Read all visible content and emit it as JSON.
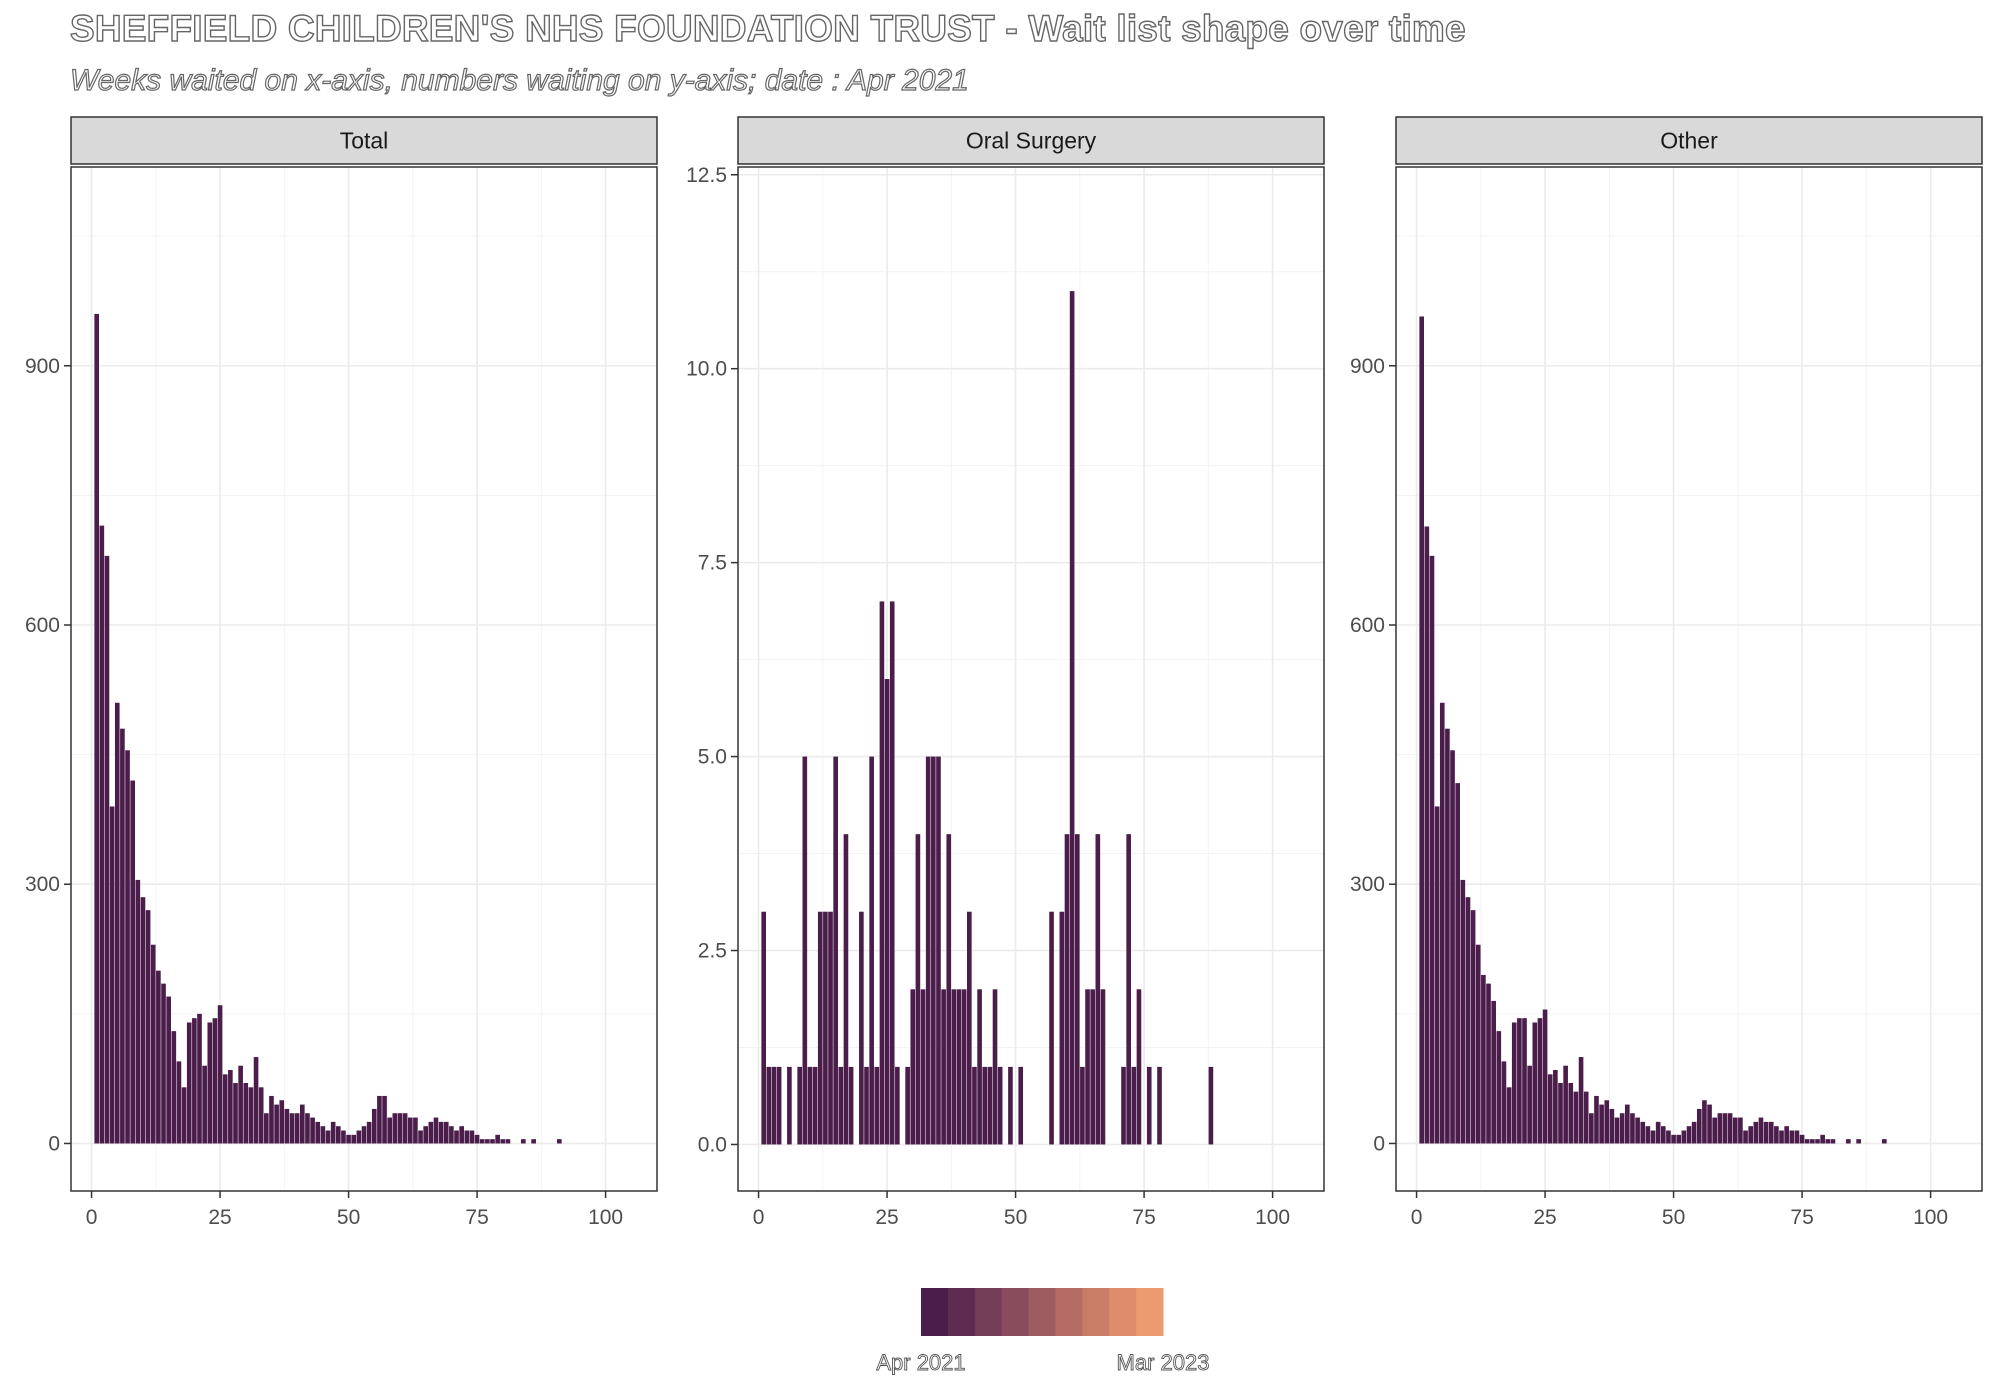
{
  "header": {
    "title": "SHEFFIELD CHILDREN'S NHS FOUNDATION TRUST - Wait list shape over time",
    "subtitle": "Weeks waited on x-axis, numbers waiting on y-axis; date : Apr 2021"
  },
  "colors": {
    "bar": "#4a1d4a",
    "strip_bg": "#d9d9d9",
    "grid": "#ebebeb",
    "panel_border": "#333333"
  },
  "legend": {
    "start_label": "Apr 2021",
    "end_label": "Mar 2023",
    "swatches": [
      "#4a1d4a",
      "#5e2c50",
      "#733c57",
      "#884c5c",
      "#9d5c60",
      "#b46c64",
      "#c97c68",
      "#de8c6c",
      "#ec9a70"
    ]
  },
  "chart_data": [
    {
      "type": "bar",
      "facet": "Total",
      "x_ticks": [
        0,
        25,
        50,
        75,
        100
      ],
      "y_ticks": [
        0,
        300,
        600,
        900
      ],
      "xlim": [
        -4,
        110
      ],
      "ylim": [
        -55,
        1130
      ],
      "x": [
        1,
        2,
        3,
        4,
        5,
        6,
        7,
        8,
        9,
        10,
        11,
        12,
        13,
        14,
        15,
        16,
        17,
        18,
        19,
        20,
        21,
        22,
        23,
        24,
        25,
        26,
        27,
        28,
        29,
        30,
        31,
        32,
        33,
        34,
        35,
        36,
        37,
        38,
        39,
        40,
        41,
        42,
        43,
        44,
        45,
        46,
        47,
        48,
        49,
        50,
        51,
        52,
        53,
        54,
        55,
        56,
        57,
        58,
        59,
        60,
        61,
        62,
        63,
        64,
        65,
        66,
        67,
        68,
        69,
        70,
        71,
        72,
        73,
        74,
        75,
        76,
        77,
        78,
        79,
        80,
        81,
        82,
        83,
        84,
        85,
        86,
        87,
        88,
        89,
        90,
        91,
        92,
        93,
        94,
        95,
        96,
        97,
        98,
        99,
        100
      ],
      "values": [
        960,
        715,
        680,
        390,
        510,
        480,
        455,
        420,
        305,
        285,
        270,
        230,
        200,
        185,
        170,
        130,
        95,
        65,
        140,
        145,
        150,
        90,
        140,
        145,
        160,
        80,
        85,
        70,
        90,
        70,
        65,
        100,
        65,
        35,
        55,
        45,
        50,
        40,
        35,
        35,
        45,
        35,
        30,
        25,
        20,
        15,
        25,
        20,
        15,
        10,
        10,
        15,
        20,
        25,
        40,
        55,
        55,
        30,
        35,
        35,
        35,
        30,
        30,
        15,
        20,
        25,
        30,
        25,
        25,
        20,
        15,
        20,
        15,
        15,
        10,
        5,
        5,
        5,
        10,
        5,
        5,
        0,
        0,
        5,
        0,
        5,
        0,
        0,
        0,
        0,
        5,
        0,
        0,
        0,
        0,
        0,
        0,
        0,
        0,
        0
      ]
    },
    {
      "type": "bar",
      "facet": "Oral Surgery",
      "x_ticks": [
        0,
        25,
        50,
        75,
        100
      ],
      "y_ticks": [
        0.0,
        2.5,
        5.0,
        7.5,
        10.0,
        12.5
      ],
      "y_tick_labels": [
        "0.0",
        "2.5",
        "5.0",
        "7.5",
        "10.0",
        "12.5"
      ],
      "xlim": [
        -4,
        110
      ],
      "ylim": [
        -0.6,
        12.6
      ],
      "x": [
        1,
        2,
        3,
        4,
        5,
        6,
        7,
        8,
        9,
        10,
        11,
        12,
        13,
        14,
        15,
        16,
        17,
        18,
        19,
        20,
        21,
        22,
        23,
        24,
        25,
        26,
        27,
        28,
        29,
        30,
        31,
        32,
        33,
        34,
        35,
        36,
        37,
        38,
        39,
        40,
        41,
        42,
        43,
        44,
        45,
        46,
        47,
        48,
        49,
        50,
        51,
        52,
        53,
        54,
        55,
        56,
        57,
        58,
        59,
        60,
        61,
        62,
        63,
        64,
        65,
        66,
        67,
        68,
        69,
        70,
        71,
        72,
        73,
        74,
        75,
        76,
        77,
        78,
        79,
        80,
        81,
        82,
        83,
        84,
        85,
        86,
        87,
        88,
        89,
        90,
        91,
        92,
        93,
        94,
        95,
        96,
        97,
        98,
        99,
        100
      ],
      "values": [
        3,
        1,
        1,
        1,
        0,
        1,
        0,
        1,
        5,
        1,
        1,
        3,
        3,
        3,
        5,
        1,
        4,
        1,
        0,
        3,
        1,
        5,
        1,
        7,
        6,
        7,
        1,
        0,
        1,
        2,
        4,
        2,
        5,
        5,
        5,
        2,
        4,
        2,
        2,
        2,
        3,
        1,
        2,
        1,
        1,
        2,
        1,
        0,
        1,
        0,
        1,
        0,
        0,
        0,
        0,
        0,
        3,
        0,
        3,
        4,
        11,
        4,
        1,
        2,
        2,
        4,
        2,
        0,
        0,
        0,
        1,
        4,
        1,
        2,
        0,
        1,
        0,
        1,
        0,
        0,
        0,
        0,
        0,
        0,
        0,
        0,
        0,
        1,
        0,
        0,
        0,
        0,
        0,
        0,
        0,
        0,
        0,
        0,
        0,
        0
      ]
    },
    {
      "type": "bar",
      "facet": "Other",
      "x_ticks": [
        0,
        25,
        50,
        75,
        100
      ],
      "y_ticks": [
        0,
        300,
        600,
        900
      ],
      "xlim": [
        -4,
        110
      ],
      "ylim": [
        -55,
        1130
      ],
      "x": [
        1,
        2,
        3,
        4,
        5,
        6,
        7,
        8,
        9,
        10,
        11,
        12,
        13,
        14,
        15,
        16,
        17,
        18,
        19,
        20,
        21,
        22,
        23,
        24,
        25,
        26,
        27,
        28,
        29,
        30,
        31,
        32,
        33,
        34,
        35,
        36,
        37,
        38,
        39,
        40,
        41,
        42,
        43,
        44,
        45,
        46,
        47,
        48,
        49,
        50,
        51,
        52,
        53,
        54,
        55,
        56,
        57,
        58,
        59,
        60,
        61,
        62,
        63,
        64,
        65,
        66,
        67,
        68,
        69,
        70,
        71,
        72,
        73,
        74,
        75,
        76,
        77,
        78,
        79,
        80,
        81,
        82,
        83,
        84,
        85,
        86,
        87,
        88,
        89,
        90,
        91,
        92,
        93,
        94,
        95,
        96,
        97,
        98,
        99,
        100
      ],
      "values": [
        957,
        714,
        680,
        390,
        510,
        480,
        455,
        417,
        305,
        285,
        270,
        230,
        195,
        185,
        165,
        130,
        95,
        65,
        140,
        145,
        145,
        90,
        140,
        145,
        155,
        80,
        85,
        70,
        90,
        70,
        60,
        100,
        60,
        35,
        55,
        45,
        50,
        40,
        30,
        35,
        45,
        35,
        30,
        25,
        20,
        15,
        25,
        20,
        15,
        10,
        10,
        15,
        20,
        25,
        40,
        50,
        45,
        30,
        35,
        35,
        35,
        30,
        30,
        15,
        20,
        25,
        30,
        25,
        25,
        20,
        15,
        20,
        15,
        15,
        10,
        5,
        5,
        5,
        10,
        5,
        5,
        0,
        0,
        5,
        0,
        5,
        0,
        0,
        0,
        0,
        5,
        0,
        0,
        0,
        0,
        0,
        0,
        0,
        0,
        0
      ]
    }
  ]
}
